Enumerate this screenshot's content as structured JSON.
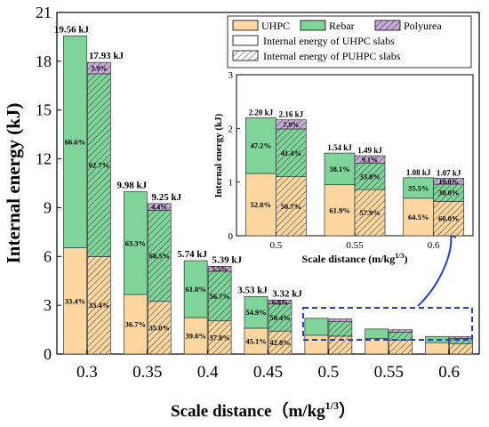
{
  "chart_data": {
    "type": "bar",
    "stacking": "stacked",
    "categories": [
      "0.3",
      "0.35",
      "0.4",
      "0.45",
      "0.5",
      "0.55",
      "0.6"
    ],
    "xlabel": "Scale distance（m/kg",
    "xlabel_sup": "1/3",
    "xlabel_tail": "）",
    "ylabel": "Internal energy (kJ)",
    "ylim": [
      0,
      21
    ],
    "yticks": [
      "0",
      "3",
      "6",
      "9",
      "12",
      "15",
      "18",
      "21"
    ],
    "colors": {
      "UHPC": "#fdd6a0",
      "Rebar": "#7fd49a",
      "Polyurea": "#c9a9d9"
    },
    "legend": {
      "placement": "top-right",
      "entries": [
        "UHPC",
        "Rebar",
        "Polyurea",
        "Internal energy of UHPC slabs",
        "Internal energy of PUHPC slabs"
      ]
    },
    "series": [
      {
        "name": "UHPC",
        "uhpc": [
          6.53,
          3.66,
          2.24,
          1.59,
          1.16,
          0.95,
          0.7
        ],
        "puhpc": [
          5.99,
          3.24,
          2.04,
          1.41,
          1.1,
          0.86,
          0.64
        ]
      },
      {
        "name": "Rebar",
        "uhpc": [
          13.03,
          6.32,
          3.5,
          1.94,
          1.04,
          0.59,
          0.38
        ],
        "puhpc": [
          11.24,
          5.6,
          3.05,
          1.67,
          0.89,
          0.49,
          0.32
        ]
      },
      {
        "name": "Polyurea",
        "puhpc": [
          0.7,
          0.41,
          0.3,
          0.24,
          0.17,
          0.14,
          0.11
        ]
      }
    ],
    "totals": {
      "uhpc": [
        "19.56 kJ",
        "9.98 kJ",
        "5.74 kJ",
        "3.53 kJ",
        "2.20 kJ",
        "1.54 kJ",
        "1.08 kJ"
      ],
      "puhpc": [
        "17.93 kJ",
        "9.25 kJ",
        "5.39 kJ",
        "3.32 kJ",
        "2.16 kJ",
        "1.49 kJ",
        "1.07 kJ"
      ]
    },
    "pct_labels": {
      "uhpc_uhpc": [
        "33.4%",
        "36.7%",
        "39.0%",
        "45.1%"
      ],
      "uhpc_rebar": [
        "66.6%",
        "63.3%",
        "61.0%",
        "54.9%"
      ],
      "puhpc_uhpc": [
        "33.4%",
        "35.0%",
        "37.8%",
        "42.8%"
      ],
      "puhpc_rebar": [
        "62.7%",
        "60.5%",
        "56.7%",
        "50.4%"
      ],
      "puhpc_poly": [
        "3.9%",
        "4.4%",
        "5.5%",
        "6.8%"
      ]
    },
    "inset": {
      "categories": [
        "0.5",
        "0.55",
        "0.6"
      ],
      "xlabel": "Scale distance  (m/kg",
      "xlabel_sup": "1/3",
      "xlabel_tail": ")",
      "ylabel": "Internal energy (kJ)",
      "ylim": [
        0,
        3
      ],
      "yticks": [
        "0",
        "1",
        "2",
        "3"
      ],
      "totals_uhpc": [
        "2.20 kJ",
        "1.54 kJ",
        "1.08 kJ"
      ],
      "totals_puhpc": [
        "2.16 kJ",
        "1.49 kJ",
        "1.07 kJ"
      ],
      "pct_uhpc_uhpc": [
        "52.8%",
        "61.9%",
        "64.5%"
      ],
      "pct_uhpc_rebar": [
        "47.2%",
        "38.1%",
        "35.5%"
      ],
      "pct_puhpc_uhpc": [
        "50.7%",
        "57.9%",
        "60.0%"
      ],
      "pct_puhpc_rebar": [
        "41.4%",
        "33.0%",
        "30.0%"
      ],
      "pct_puhpc_poly": [
        "7.9%",
        "9.1%",
        "10.0%"
      ]
    }
  }
}
